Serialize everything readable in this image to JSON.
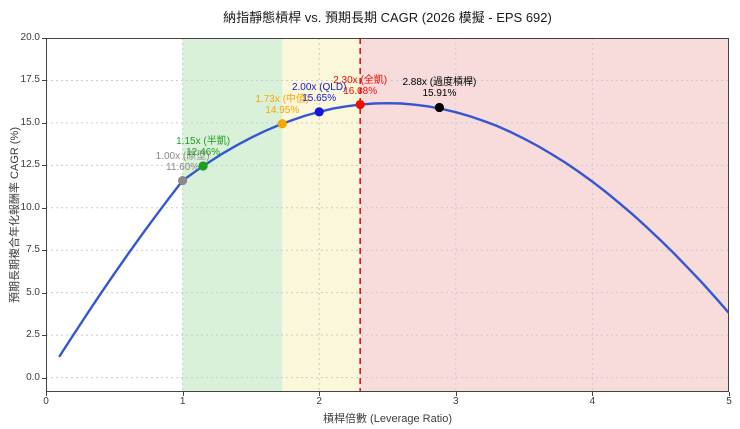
{
  "chart_data": {
    "type": "line",
    "title": "納指靜態槓桿 vs. 預期長期 CAGR (2026 模擬 - EPS 692)",
    "xlabel": "槓桿倍數 (Leverage Ratio)",
    "ylabel": "預期長期複合年化報酬率 CAGR (%)",
    "xlim": [
      0,
      5
    ],
    "ylim": [
      -0.85,
      20
    ],
    "xticks": [
      0,
      1,
      2,
      3,
      4,
      5
    ],
    "yticks": [
      0,
      2.5,
      5,
      7.5,
      10,
      12.5,
      15,
      17.5,
      20
    ],
    "grid": true,
    "legend": "none",
    "curve": {
      "name": "expected-cagr-curve",
      "color": "#3456d1",
      "x": [
        0.1,
        0.2,
        0.3,
        0.4,
        0.5,
        0.6,
        0.7,
        0.8,
        0.9,
        1.0,
        1.1,
        1.2,
        1.3,
        1.4,
        1.5,
        1.6,
        1.7,
        1.8,
        1.9,
        2.0,
        2.1,
        2.2,
        2.3,
        2.4,
        2.5,
        2.6,
        2.7,
        2.8,
        2.9,
        3.0,
        3.1,
        3.2,
        3.3,
        3.4,
        3.5,
        3.6,
        3.7,
        3.8,
        3.9,
        4.0,
        4.1,
        4.2,
        4.3,
        4.4,
        4.5,
        4.6,
        4.7,
        4.8,
        4.9,
        5.0
      ],
      "y": [
        1.27,
        2.51,
        3.74,
        4.94,
        6.12,
        7.27,
        8.39,
        9.49,
        10.56,
        11.6,
        12.18,
        12.72,
        13.23,
        13.69,
        14.12,
        14.51,
        14.85,
        15.16,
        15.43,
        15.65,
        15.84,
        15.98,
        16.08,
        16.14,
        16.16,
        16.14,
        16.07,
        15.97,
        15.82,
        15.63,
        15.4,
        15.13,
        14.82,
        14.47,
        14.07,
        13.64,
        13.17,
        12.67,
        12.12,
        11.54,
        10.92,
        10.26,
        9.57,
        8.84,
        8.08,
        7.29,
        6.46,
        5.61,
        4.72,
        3.8
      ]
    },
    "points": [
      {
        "x": 1.0,
        "y": 11.6,
        "label": "1.00x (原型)",
        "pct": "11.60%",
        "color": "#8a8a8a"
      },
      {
        "x": 1.15,
        "y": 12.46,
        "label": "1.15x (半凱)",
        "pct": "12.46%",
        "color": "#1e9e1e"
      },
      {
        "x": 1.73,
        "y": 14.95,
        "label": "1.73x (中值)",
        "pct": "14.95%",
        "color": "#f7a600"
      },
      {
        "x": 2.0,
        "y": 15.65,
        "label": "2.00x (QLD)",
        "pct": "15.65%",
        "color": "#1118d8"
      },
      {
        "x": 2.3,
        "y": 16.08,
        "label": "2.30x (全凱)",
        "pct": "16.08%",
        "color": "#f20d00"
      },
      {
        "x": 2.88,
        "y": 15.91,
        "label": "2.88x (過度槓桿)",
        "pct": "15.91%",
        "color": "#000000"
      }
    ],
    "zones": [
      {
        "name": "green-zone",
        "from": 1.0,
        "to": 1.73,
        "color": "#d9f1d9"
      },
      {
        "name": "yellow-zone",
        "from": 1.73,
        "to": 2.3,
        "color": "#fbf7da"
      },
      {
        "name": "red-zone",
        "from": 2.3,
        "to": 5.0,
        "color": "#f8dbdb"
      }
    ],
    "vline": {
      "x": 2.3,
      "color": "#e01414",
      "style": "dashed"
    }
  },
  "style_colors": {
    "curve": "#3456d1",
    "grid": "#cbcbcb",
    "spine": "#444444",
    "tick_label": "#3d3d3d",
    "title": "#1a1a1a",
    "background": "#ffffff"
  }
}
